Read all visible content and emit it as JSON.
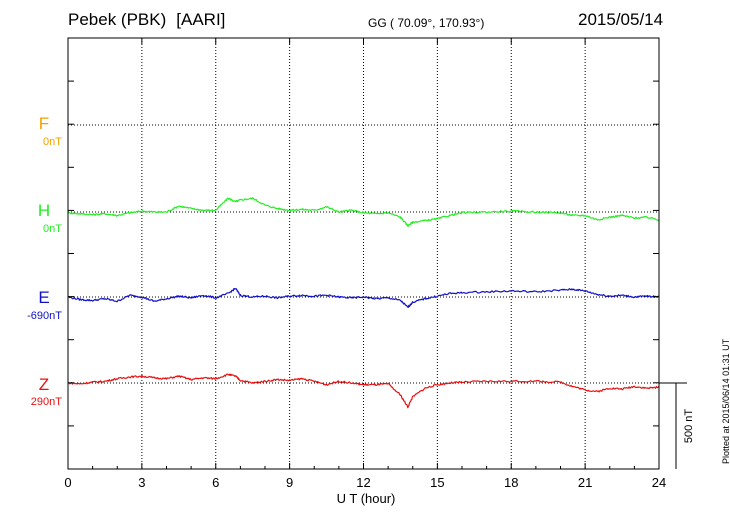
{
  "header": {
    "station": "Pebek (PBK)",
    "group": "[AARI]",
    "coordinates": "GG ( 70.09°, 170.93°)",
    "date": "2015/05/14"
  },
  "footer_note": "Plotted at 2015/06/14 01:31  UT",
  "colors": {
    "F": "#f2a000",
    "H": "#22ee22",
    "E": "#1010c8",
    "Z": "#e81010",
    "axes": "#000000"
  },
  "chart_data": {
    "type": "line",
    "title": "",
    "xlabel": "U T (hour)",
    "ylabel": "",
    "xlim": [
      0,
      24
    ],
    "xticks": [
      0,
      3,
      6,
      9,
      12,
      15,
      18,
      21,
      24
    ],
    "grid": true,
    "scale_bar": {
      "label": "500 nT",
      "value_nT": 500
    },
    "series": [
      {
        "name": "F",
        "baseline_label": "0nT",
        "x": [],
        "values": []
      },
      {
        "name": "H",
        "baseline_label": "0nT",
        "x": [
          0,
          0.5,
          1.0,
          1.5,
          2.0,
          2.5,
          3.0,
          3.5,
          4.0,
          4.5,
          5.0,
          5.5,
          6.0,
          6.5,
          6.8,
          7.0,
          7.5,
          8.0,
          8.5,
          9.0,
          9.5,
          10.0,
          10.5,
          11.0,
          11.5,
          12.0,
          12.5,
          13.0,
          13.5,
          13.8,
          14.0,
          14.5,
          15.0,
          15.5,
          16.0,
          17.0,
          18.0,
          19.0,
          20.0,
          20.5,
          21.0,
          21.5,
          22.0,
          22.5,
          23.0,
          23.5,
          24.0
        ],
        "values": [
          -5,
          -10,
          -15,
          -10,
          -20,
          -5,
          5,
          0,
          0,
          35,
          20,
          10,
          10,
          80,
          60,
          70,
          80,
          40,
          20,
          10,
          15,
          10,
          30,
          0,
          10,
          -5,
          -10,
          -5,
          -30,
          -80,
          -60,
          -50,
          -40,
          -20,
          -5,
          0,
          5,
          0,
          -5,
          -20,
          -20,
          -45,
          -30,
          -20,
          -35,
          -30,
          -45
        ]
      },
      {
        "name": "E",
        "baseline_label": "-690nT",
        "x": [
          0,
          0.5,
          1.0,
          1.5,
          2.0,
          2.5,
          3.0,
          3.5,
          4.0,
          4.5,
          5.0,
          5.5,
          6.0,
          6.5,
          6.8,
          7.0,
          7.5,
          8.0,
          8.5,
          9.0,
          9.5,
          10.0,
          10.5,
          11.0,
          11.5,
          12.0,
          12.5,
          13.0,
          13.5,
          13.8,
          14.0,
          14.5,
          15.0,
          15.5,
          16.0,
          17.0,
          18.0,
          19.0,
          20.0,
          20.5,
          21.0,
          21.5,
          22.0,
          22.5,
          23.0,
          23.5,
          24.0
        ],
        "values": [
          0,
          -15,
          -20,
          -10,
          -25,
          10,
          0,
          -25,
          -10,
          5,
          -5,
          10,
          -5,
          20,
          50,
          10,
          0,
          5,
          -5,
          5,
          10,
          5,
          10,
          0,
          -5,
          0,
          -10,
          -5,
          -20,
          -60,
          -30,
          -10,
          5,
          20,
          25,
          30,
          35,
          30,
          40,
          45,
          35,
          15,
          5,
          10,
          0,
          5,
          0
        ]
      },
      {
        "name": "Z",
        "baseline_label": "290nT",
        "x": [
          0,
          0.5,
          1.0,
          1.5,
          2.0,
          2.5,
          3.0,
          3.5,
          4.0,
          4.5,
          5.0,
          5.5,
          6.0,
          6.5,
          6.8,
          7.0,
          7.5,
          8.0,
          8.5,
          9.0,
          9.5,
          10.0,
          10.5,
          11.0,
          11.5,
          12.0,
          12.5,
          13.0,
          13.5,
          13.8,
          14.0,
          14.5,
          15.0,
          15.5,
          16.0,
          17.0,
          18.0,
          19.0,
          20.0,
          20.5,
          21.0,
          21.5,
          22.0,
          22.5,
          23.0,
          23.5,
          24.0
        ],
        "values": [
          0,
          -5,
          5,
          10,
          25,
          35,
          40,
          30,
          25,
          40,
          20,
          30,
          25,
          50,
          40,
          15,
          0,
          10,
          20,
          15,
          25,
          10,
          -10,
          10,
          0,
          -10,
          -10,
          -5,
          -70,
          -140,
          -80,
          -30,
          -10,
          0,
          5,
          10,
          10,
          10,
          5,
          -20,
          -40,
          -50,
          -30,
          -35,
          -20,
          -30,
          -25
        ]
      }
    ]
  }
}
